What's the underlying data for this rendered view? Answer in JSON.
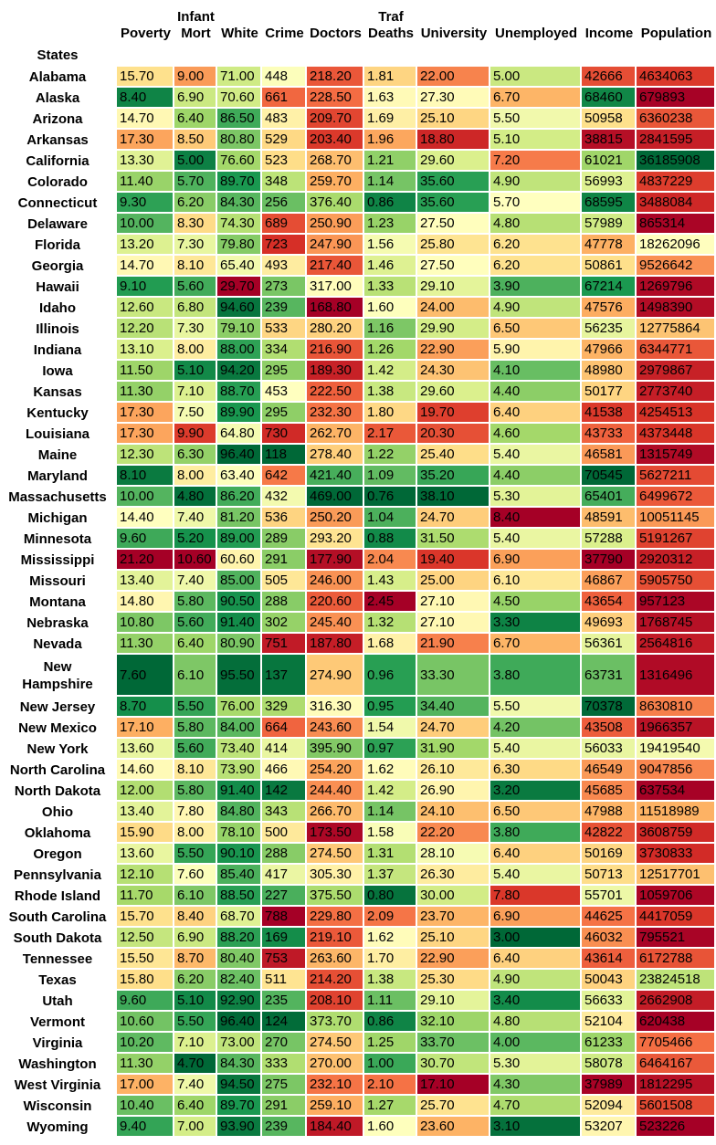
{
  "chart_data": {
    "type": "heatmap",
    "row_title": "States",
    "columns": [
      "Poverty",
      "Infant\nMort",
      "White",
      "Crime",
      "Doctors",
      "Traf\nDeaths",
      "University",
      "Unemployed",
      "Income",
      "Population"
    ],
    "rows": [
      "Alabama",
      "Alaska",
      "Arizona",
      "Arkansas",
      "California",
      "Colorado",
      "Connecticut",
      "Delaware",
      "Florida",
      "Georgia",
      "Hawaii",
      "Idaho",
      "Illinois",
      "Indiana",
      "Iowa",
      "Kansas",
      "Kentucky",
      "Louisiana",
      "Maine",
      "Maryland",
      "Massachusetts",
      "Michigan",
      "Minnesota",
      "Mississippi",
      "Missouri",
      "Montana",
      "Nebraska",
      "Nevada",
      "New\nHampshire",
      "New Jersey",
      "New Mexico",
      "New York",
      "North Carolina",
      "North Dakota",
      "Ohio",
      "Oklahoma",
      "Oregon",
      "Pennsylvania",
      "Rhode Island",
      "South Carolina",
      "South Dakota",
      "Tennessee",
      "Texas",
      "Utah",
      "Vermont",
      "Virginia",
      "Washington",
      "West Virginia",
      "Wisconsin",
      "Wyoming"
    ],
    "values": [
      [
        "15.70",
        "9.00",
        "71.00",
        "448",
        "218.20",
        "1.81",
        "22.00",
        "5.00",
        "42666",
        "4634063"
      ],
      [
        "8.40",
        "6.90",
        "70.60",
        "661",
        "228.50",
        "1.63",
        "27.30",
        "6.70",
        "68460",
        "679893"
      ],
      [
        "14.70",
        "6.40",
        "86.50",
        "483",
        "209.70",
        "1.69",
        "25.10",
        "5.50",
        "50958",
        "6360238"
      ],
      [
        "17.30",
        "8.50",
        "80.80",
        "529",
        "203.40",
        "1.96",
        "18.80",
        "5.10",
        "38815",
        "2841595"
      ],
      [
        "13.30",
        "5.00",
        "76.60",
        "523",
        "268.70",
        "1.21",
        "29.60",
        "7.20",
        "61021",
        "36185908"
      ],
      [
        "11.40",
        "5.70",
        "89.70",
        "348",
        "259.70",
        "1.14",
        "35.60",
        "4.90",
        "56993",
        "4837229"
      ],
      [
        "9.30",
        "6.20",
        "84.30",
        "256",
        "376.40",
        "0.86",
        "35.60",
        "5.70",
        "68595",
        "3488084"
      ],
      [
        "10.00",
        "8.30",
        "74.30",
        "689",
        "250.90",
        "1.23",
        "27.50",
        "4.80",
        "57989",
        "865314"
      ],
      [
        "13.20",
        "7.30",
        "79.80",
        "723",
        "247.90",
        "1.56",
        "25.80",
        "6.20",
        "47778",
        "18262096"
      ],
      [
        "14.70",
        "8.10",
        "65.40",
        "493",
        "217.40",
        "1.46",
        "27.50",
        "6.20",
        "50861",
        "9526642"
      ],
      [
        "9.10",
        "5.60",
        "29.70",
        "273",
        "317.00",
        "1.33",
        "29.10",
        "3.90",
        "67214",
        "1269796"
      ],
      [
        "12.60",
        "6.80",
        "94.60",
        "239",
        "168.80",
        "1.60",
        "24.00",
        "4.90",
        "47576",
        "1498390"
      ],
      [
        "12.20",
        "7.30",
        "79.10",
        "533",
        "280.20",
        "1.16",
        "29.90",
        "6.50",
        "56235",
        "12775864"
      ],
      [
        "13.10",
        "8.00",
        "88.00",
        "334",
        "216.90",
        "1.26",
        "22.90",
        "5.90",
        "47966",
        "6344771"
      ],
      [
        "11.50",
        "5.10",
        "94.20",
        "295",
        "189.30",
        "1.42",
        "24.30",
        "4.10",
        "48980",
        "2979867"
      ],
      [
        "11.30",
        "7.10",
        "88.70",
        "453",
        "222.50",
        "1.38",
        "29.60",
        "4.40",
        "50177",
        "2773740"
      ],
      [
        "17.30",
        "7.50",
        "89.90",
        "295",
        "232.30",
        "1.80",
        "19.70",
        "6.40",
        "41538",
        "4254513"
      ],
      [
        "17.30",
        "9.90",
        "64.80",
        "730",
        "262.70",
        "2.17",
        "20.30",
        "4.60",
        "43733",
        "4373448"
      ],
      [
        "12.30",
        "6.30",
        "96.40",
        "118",
        "278.40",
        "1.22",
        "25.40",
        "5.40",
        "46581",
        "1315749"
      ],
      [
        "8.10",
        "8.00",
        "63.40",
        "642",
        "421.40",
        "1.09",
        "35.20",
        "4.40",
        "70545",
        "5627211"
      ],
      [
        "10.00",
        "4.80",
        "86.20",
        "432",
        "469.00",
        "0.76",
        "38.10",
        "5.30",
        "65401",
        "6499672"
      ],
      [
        "14.40",
        "7.40",
        "81.20",
        "536",
        "250.20",
        "1.04",
        "24.70",
        "8.40",
        "48591",
        "10051145"
      ],
      [
        "9.60",
        "5.20",
        "89.00",
        "289",
        "293.20",
        "0.88",
        "31.50",
        "5.40",
        "57288",
        "5191267"
      ],
      [
        "21.20",
        "10.60",
        "60.60",
        "291",
        "177.90",
        "2.04",
        "19.40",
        "6.90",
        "37790",
        "2920312"
      ],
      [
        "13.40",
        "7.40",
        "85.00",
        "505",
        "246.00",
        "1.43",
        "25.00",
        "6.10",
        "46867",
        "5905750"
      ],
      [
        "14.80",
        "5.80",
        "90.50",
        "288",
        "220.60",
        "2.45",
        "27.10",
        "4.50",
        "43654",
        "957123"
      ],
      [
        "10.80",
        "5.60",
        "91.40",
        "302",
        "245.40",
        "1.32",
        "27.10",
        "3.30",
        "49693",
        "1768745"
      ],
      [
        "11.30",
        "6.40",
        "80.90",
        "751",
        "187.80",
        "1.68",
        "21.90",
        "6.70",
        "56361",
        "2564816"
      ],
      [
        "7.60",
        "6.10",
        "95.50",
        "137",
        "274.90",
        "0.96",
        "33.30",
        "3.80",
        "63731",
        "1316496"
      ],
      [
        "8.70",
        "5.50",
        "76.00",
        "329",
        "316.30",
        "0.95",
        "34.40",
        "5.50",
        "70378",
        "8630810"
      ],
      [
        "17.10",
        "5.80",
        "84.00",
        "664",
        "243.60",
        "1.54",
        "24.70",
        "4.20",
        "43508",
        "1966357"
      ],
      [
        "13.60",
        "5.60",
        "73.40",
        "414",
        "395.90",
        "0.97",
        "31.90",
        "5.40",
        "56033",
        "19419540"
      ],
      [
        "14.60",
        "8.10",
        "73.90",
        "466",
        "254.20",
        "1.62",
        "26.10",
        "6.30",
        "46549",
        "9047856"
      ],
      [
        "12.00",
        "5.80",
        "91.40",
        "142",
        "244.40",
        "1.42",
        "26.90",
        "3.20",
        "45685",
        "637534"
      ],
      [
        "13.40",
        "7.80",
        "84.80",
        "343",
        "266.70",
        "1.14",
        "24.10",
        "6.50",
        "47988",
        "11518989"
      ],
      [
        "15.90",
        "8.00",
        "78.10",
        "500",
        "173.50",
        "1.58",
        "22.20",
        "3.80",
        "42822",
        "3608759"
      ],
      [
        "13.60",
        "5.50",
        "90.10",
        "288",
        "274.50",
        "1.31",
        "28.10",
        "6.40",
        "50169",
        "3730833"
      ],
      [
        "12.10",
        "7.60",
        "85.40",
        "417",
        "305.30",
        "1.37",
        "26.30",
        "5.40",
        "50713",
        "12517701"
      ],
      [
        "11.70",
        "6.10",
        "88.50",
        "227",
        "375.50",
        "0.80",
        "30.00",
        "7.80",
        "55701",
        "1059706"
      ],
      [
        "15.70",
        "8.40",
        "68.70",
        "788",
        "229.80",
        "2.09",
        "23.70",
        "6.90",
        "44625",
        "4417059"
      ],
      [
        "12.50",
        "6.90",
        "88.20",
        "169",
        "219.10",
        "1.62",
        "25.10",
        "3.00",
        "46032",
        "795521"
      ],
      [
        "15.50",
        "8.70",
        "80.40",
        "753",
        "263.60",
        "1.70",
        "22.90",
        "6.40",
        "43614",
        "6172788"
      ],
      [
        "15.80",
        "6.20",
        "82.40",
        "511",
        "214.20",
        "1.38",
        "25.30",
        "4.90",
        "50043",
        "23824518"
      ],
      [
        "9.60",
        "5.10",
        "92.90",
        "235",
        "208.10",
        "1.11",
        "29.10",
        "3.40",
        "56633",
        "2662908"
      ],
      [
        "10.60",
        "5.50",
        "96.40",
        "124",
        "373.70",
        "0.86",
        "32.10",
        "4.80",
        "52104",
        "620438"
      ],
      [
        "10.20",
        "7.10",
        "73.00",
        "270",
        "274.50",
        "1.25",
        "33.70",
        "4.00",
        "61233",
        "7705466"
      ],
      [
        "11.30",
        "4.70",
        "84.30",
        "333",
        "270.00",
        "1.00",
        "30.70",
        "5.30",
        "58078",
        "6464167"
      ],
      [
        "17.00",
        "7.40",
        "94.50",
        "275",
        "232.10",
        "2.10",
        "17.10",
        "4.30",
        "37989",
        "1812295"
      ],
      [
        "10.40",
        "6.40",
        "89.70",
        "291",
        "259.10",
        "1.27",
        "25.70",
        "4.70",
        "52094",
        "5601508"
      ],
      [
        "9.40",
        "7.00",
        "93.90",
        "239",
        "184.40",
        "1.60",
        "23.60",
        "3.10",
        "53207",
        "523226"
      ]
    ],
    "higher_is_better": [
      false,
      false,
      true,
      false,
      true,
      false,
      true,
      false,
      true,
      true
    ],
    "colormap": [
      "#a50026",
      "#d73027",
      "#f46d43",
      "#fdae61",
      "#fee08b",
      "#ffffbf",
      "#d9ef8b",
      "#a6d96a",
      "#66bd63",
      "#1a9850",
      "#006837"
    ]
  }
}
